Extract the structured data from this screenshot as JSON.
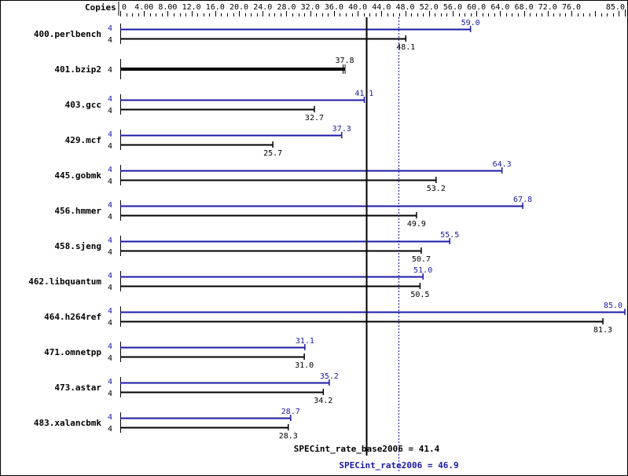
{
  "chart_data": {
    "type": "bar",
    "orientation": "horizontal",
    "axis_header": "Copies",
    "xlim": [
      0,
      85
    ],
    "ticks": [
      "0",
      "4.00",
      "8.00",
      "12.0",
      "16.0",
      "20.0",
      "24.0",
      "28.0",
      "32.0",
      "36.0",
      "40.0",
      "44.0",
      "48.0",
      "52.0",
      "56.0",
      "60.0",
      "64.0",
      "68.0",
      "72.0",
      "76.0",
      "85.0"
    ],
    "tick_values": [
      0,
      4,
      8,
      12,
      16,
      20,
      24,
      28,
      32,
      36,
      40,
      44,
      48,
      52,
      56,
      60,
      64,
      68,
      72,
      76,
      85
    ],
    "colors": {
      "peak": "#1a1aa6",
      "base": "#000000"
    },
    "categories": [
      "400.perlbench",
      "401.bzip2",
      "403.gcc",
      "429.mcf",
      "445.gobmk",
      "456.hmmer",
      "458.sjeng",
      "462.libquantum",
      "464.h264ref",
      "471.omnetpp",
      "473.astar",
      "483.xalancbmk"
    ],
    "series": [
      {
        "key": "peak",
        "copies": [
          "4",
          null,
          "4",
          "4",
          "4",
          "4",
          "4",
          "4",
          "4",
          "4",
          "4",
          "4"
        ],
        "values": [
          59.0,
          null,
          41.1,
          37.3,
          64.3,
          67.8,
          55.5,
          51.0,
          85.0,
          31.1,
          35.2,
          28.7
        ],
        "labels": [
          "59.0",
          null,
          "41.1",
          "37.3",
          "64.3",
          "67.8",
          "55.5",
          "51.0",
          "85.0",
          "31.1",
          "35.2",
          "28.7"
        ]
      },
      {
        "key": "base",
        "copies": [
          "4",
          "4",
          "4",
          "4",
          "4",
          "4",
          "4",
          "4",
          "4",
          "4",
          "4",
          "4"
        ],
        "values": [
          48.1,
          37.8,
          32.7,
          25.7,
          53.2,
          49.9,
          50.7,
          50.5,
          81.3,
          31.0,
          34.2,
          28.3
        ],
        "labels": [
          "48.1",
          "37.8",
          "32.7",
          "25.7",
          "53.2",
          "49.9",
          "50.7",
          "50.5",
          "81.3",
          "31.0",
          "34.2",
          "28.3"
        ]
      }
    ],
    "reference_lines": [
      {
        "key": "base",
        "value": 41.4,
        "label": "SPECint_rate_base2006 = 41.4"
      },
      {
        "key": "peak",
        "value": 46.9,
        "label": "SPECint_rate2006 = 46.9"
      }
    ]
  }
}
